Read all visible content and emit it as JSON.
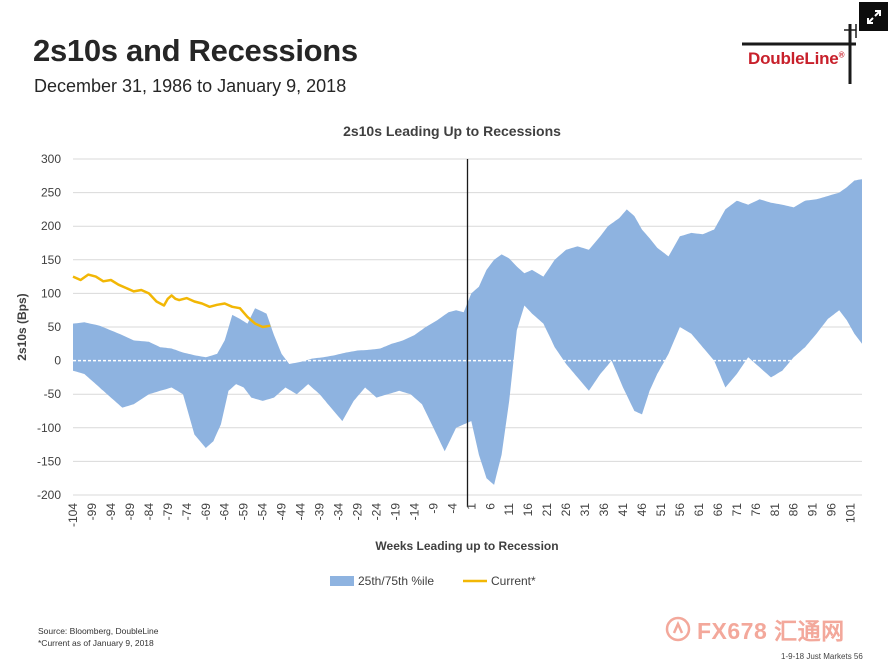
{
  "slide": {
    "title": "2s10s and Recessions",
    "subtitle": "December 31, 1986 to January 9, 2018",
    "logo_text": "DoubleLine",
    "logo_mark": "®",
    "source_line1": "Source: Bloomberg, DoubleLine",
    "source_line2": "*Current as of January 9, 2018",
    "watermark": "FX678 汇通网",
    "footer": "1-9-18 Just Markets   56"
  },
  "colors": {
    "band": "#8eb3e0",
    "current": "#f2b705",
    "vline": "#1a1a1a",
    "grid": "#d9d9d9",
    "logo_red": "#c8202b"
  },
  "chart_data": {
    "type": "area",
    "title": "2s10s Leading Up to Recessions",
    "xlabel": "Weeks Leading up to Recession",
    "ylabel": "2s10s (Bps)",
    "xlim": [
      -104,
      104
    ],
    "ylim": [
      -200,
      300
    ],
    "yticks": [
      300,
      250,
      200,
      150,
      100,
      50,
      0,
      -50,
      -100,
      -150,
      -200
    ],
    "xticks": [
      -104,
      -99,
      -94,
      -89,
      -84,
      -79,
      -74,
      -69,
      -64,
      -59,
      -54,
      -49,
      -44,
      -39,
      -34,
      -29,
      -24,
      -19,
      -14,
      -9,
      -4,
      1,
      6,
      11,
      16,
      21,
      26,
      31,
      36,
      41,
      46,
      51,
      56,
      61,
      66,
      71,
      76,
      81,
      86,
      91,
      96,
      101
    ],
    "recession_marker_x": 0,
    "legend": [
      "25th/75th %ile",
      "Current*"
    ],
    "series": [
      {
        "name": "75th %ile",
        "x": [
          -104,
          -101,
          -97,
          -94,
          -91,
          -88,
          -84,
          -81,
          -78,
          -75,
          -72,
          -69,
          -66,
          -64,
          -62,
          -60,
          -58,
          -56,
          -53,
          -51,
          -49,
          -47,
          -44,
          -41,
          -38,
          -35,
          -32,
          -29,
          -26,
          -23,
          -20,
          -17,
          -14,
          -11,
          -8,
          -5,
          -3,
          -1,
          1,
          3,
          5,
          7,
          9,
          11,
          13,
          15,
          17,
          20,
          23,
          26,
          29,
          32,
          35,
          37,
          40,
          42,
          44,
          46,
          48,
          50,
          53,
          56,
          59,
          62,
          65,
          68,
          71,
          74,
          77,
          80,
          83,
          86,
          89,
          92,
          95,
          98,
          100,
          102,
          104
        ],
        "values": [
          55,
          57,
          52,
          45,
          38,
          30,
          28,
          20,
          18,
          12,
          8,
          5,
          10,
          30,
          68,
          62,
          55,
          78,
          70,
          38,
          10,
          -5,
          -2,
          3,
          5,
          8,
          12,
          15,
          16,
          18,
          25,
          30,
          38,
          50,
          60,
          72,
          75,
          72,
          100,
          110,
          135,
          150,
          158,
          152,
          140,
          130,
          135,
          125,
          150,
          165,
          170,
          165,
          185,
          200,
          212,
          225,
          215,
          195,
          182,
          168,
          155,
          185,
          190,
          188,
          195,
          225,
          238,
          232,
          240,
          235,
          232,
          228,
          238,
          240,
          245,
          250,
          258,
          268,
          270
        ]
      },
      {
        "name": "25th %ile",
        "x": [
          -104,
          -101,
          -97,
          -94,
          -91,
          -88,
          -84,
          -81,
          -78,
          -75,
          -72,
          -69,
          -67,
          -65,
          -63,
          -61,
          -59,
          -57,
          -54,
          -51,
          -48,
          -45,
          -42,
          -39,
          -36,
          -33,
          -30,
          -27,
          -24,
          -21,
          -18,
          -15,
          -12,
          -9,
          -6,
          -3,
          -1,
          1,
          3,
          5,
          7,
          9,
          11,
          13,
          15,
          17,
          20,
          23,
          26,
          29,
          32,
          35,
          38,
          41,
          44,
          46,
          48,
          50,
          53,
          56,
          59,
          62,
          65,
          68,
          71,
          74,
          77,
          80,
          83,
          86,
          89,
          92,
          95,
          98,
          100,
          102,
          104
        ],
        "values": [
          -15,
          -20,
          -40,
          -55,
          -70,
          -65,
          -50,
          -45,
          -40,
          -50,
          -110,
          -130,
          -120,
          -95,
          -45,
          -35,
          -40,
          -55,
          -60,
          -55,
          -40,
          -50,
          -35,
          -50,
          -70,
          -90,
          -60,
          -40,
          -55,
          -50,
          -45,
          -50,
          -65,
          -100,
          -135,
          -100,
          -95,
          -90,
          -140,
          -175,
          -185,
          -140,
          -60,
          45,
          82,
          70,
          55,
          20,
          -5,
          -25,
          -45,
          -20,
          0,
          -40,
          -75,
          -80,
          -45,
          -20,
          10,
          50,
          40,
          20,
          0,
          -40,
          -20,
          5,
          -10,
          -25,
          -15,
          5,
          20,
          40,
          62,
          75,
          60,
          40,
          25
        ]
      },
      {
        "name": "Current*",
        "x": [
          -104,
          -102,
          -100,
          -98,
          -96,
          -94,
          -92,
          -90,
          -88,
          -86,
          -84,
          -82,
          -80,
          -79,
          -78,
          -77,
          -76,
          -74,
          -72,
          -70,
          -68,
          -66,
          -64,
          -62,
          -60,
          -58,
          -56,
          -54,
          -52
        ],
        "values": [
          125,
          120,
          128,
          125,
          118,
          120,
          113,
          108,
          103,
          105,
          100,
          88,
          82,
          92,
          97,
          92,
          90,
          93,
          88,
          85,
          80,
          83,
          85,
          80,
          78,
          65,
          55,
          50,
          52
        ]
      }
    ]
  }
}
